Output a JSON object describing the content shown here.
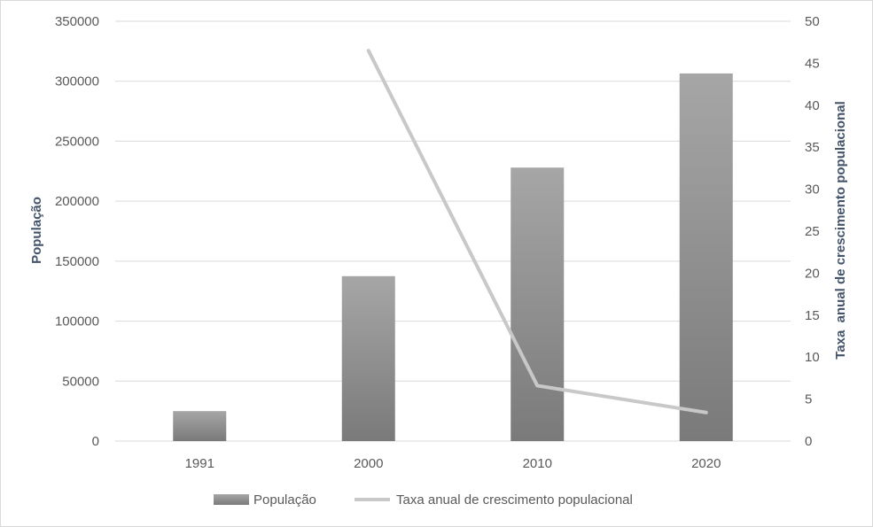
{
  "chart_data": {
    "type": "bar",
    "categories": [
      "1991",
      "2000",
      "2010",
      "2020"
    ],
    "series": [
      {
        "name": "População",
        "type": "bar",
        "axis": "left",
        "values": [
          25000,
          137500,
          228000,
          306500
        ],
        "color": "#8c8c8c"
      },
      {
        "name": "Taxa anual de crescimento populacional",
        "type": "line",
        "axis": "right",
        "values": [
          null,
          46.5,
          6.6,
          3.4
        ],
        "color": "#c8c8c8"
      }
    ],
    "ylabel": "População",
    "y2label": "Taxa  anual de crescimento populacional",
    "ylim": [
      0,
      350000
    ],
    "y2lim": [
      0,
      50
    ],
    "yticks": [
      "0",
      "50000",
      "100000",
      "150000",
      "200000",
      "250000",
      "300000",
      "350000"
    ],
    "y2ticks": [
      "0",
      "5",
      "10",
      "15",
      "20",
      "25",
      "30",
      "35",
      "40",
      "45",
      "50"
    ],
    "grid": true,
    "legend_position": "bottom"
  }
}
